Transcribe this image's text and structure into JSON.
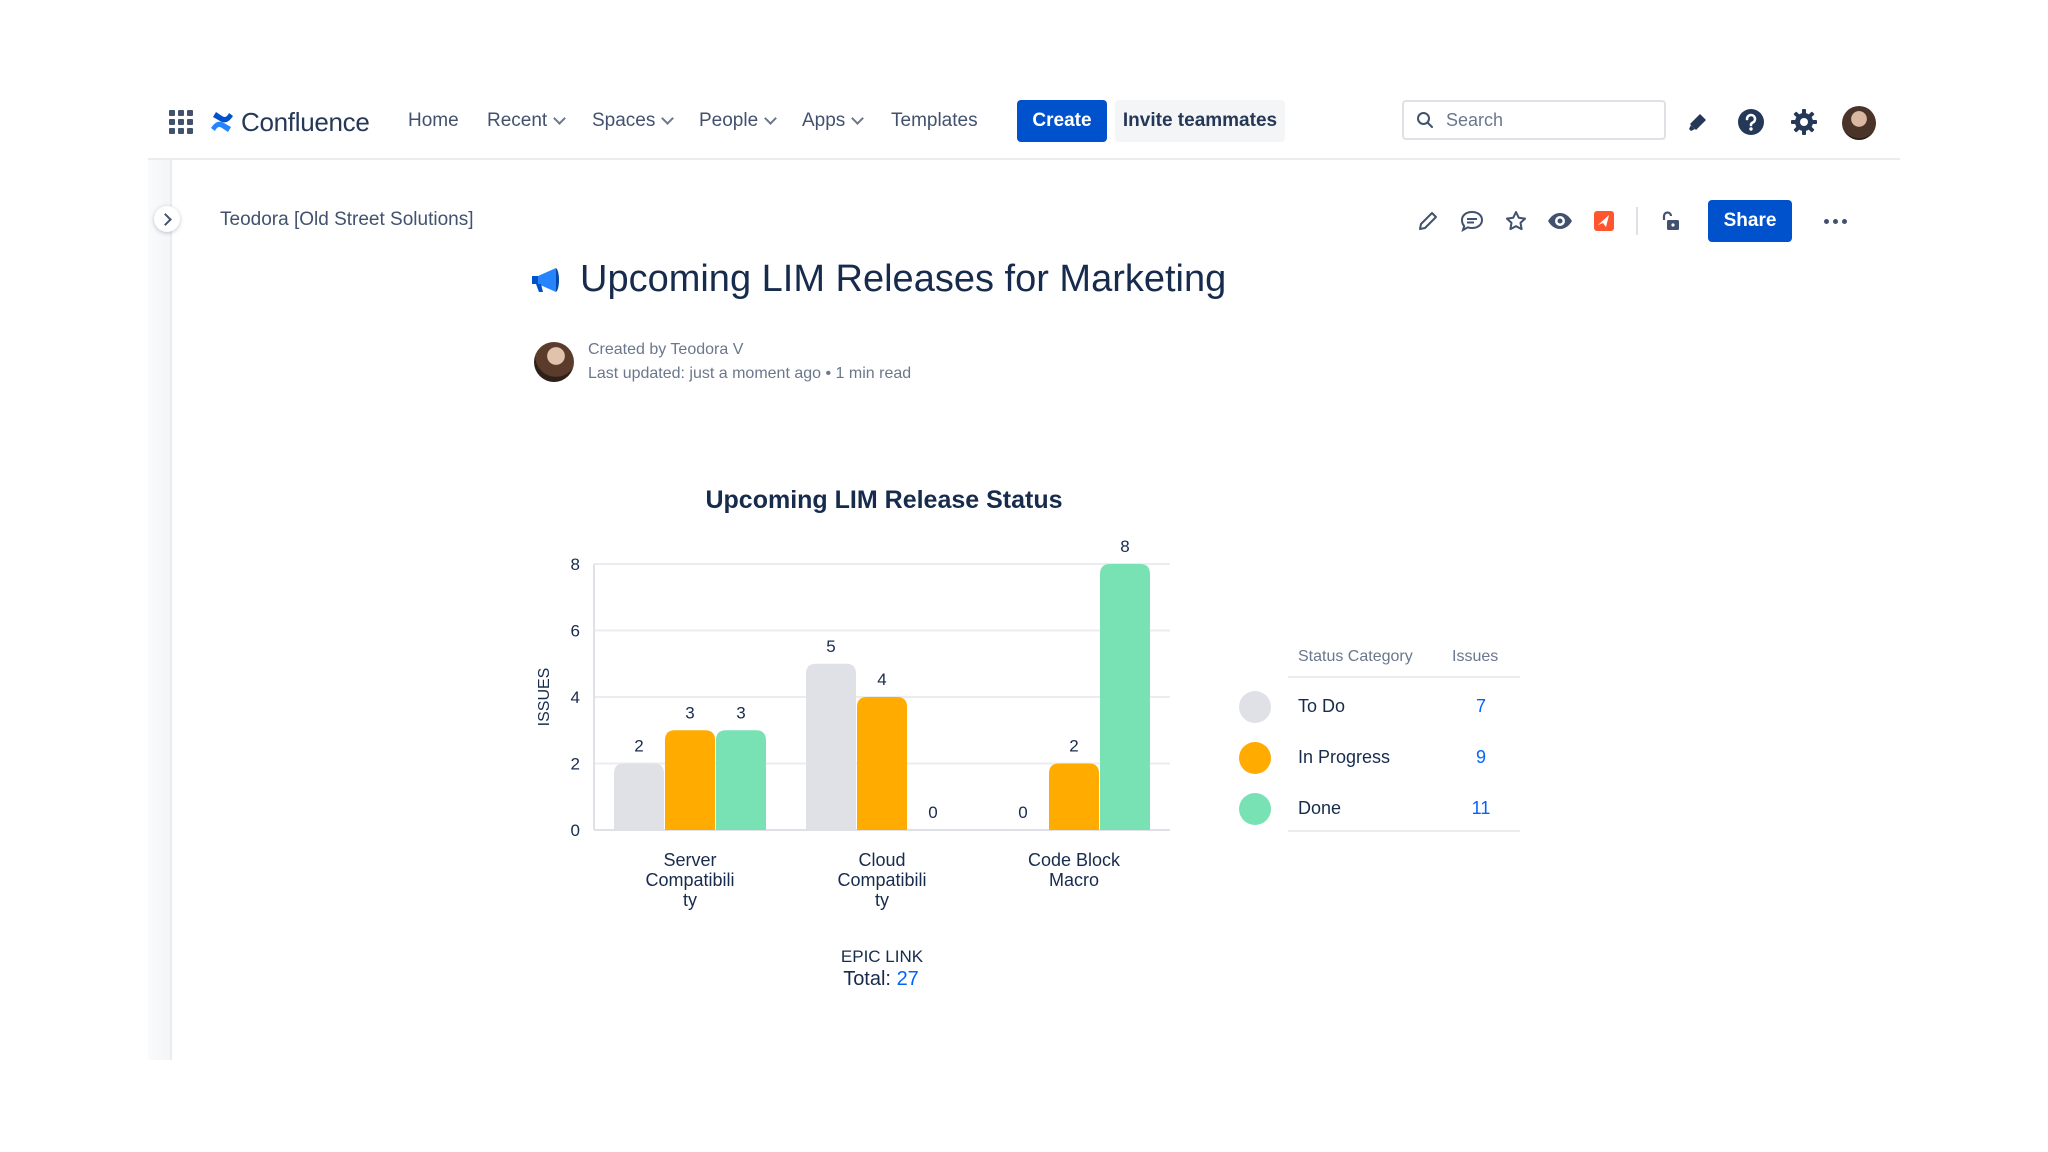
{
  "nav": {
    "logo_text": "Confluence",
    "items": [
      {
        "label": "Home",
        "dropdown": false
      },
      {
        "label": "Recent",
        "dropdown": true
      },
      {
        "label": "Spaces",
        "dropdown": true
      },
      {
        "label": "People",
        "dropdown": true
      },
      {
        "label": "Apps",
        "dropdown": true
      },
      {
        "label": "Templates",
        "dropdown": false
      }
    ],
    "create_label": "Create",
    "invite_label": "Invite teammates",
    "search_placeholder": "Search",
    "icons": [
      "notifications-icon",
      "help-icon",
      "settings-icon",
      "profile-avatar"
    ]
  },
  "page": {
    "breadcrumb": "Teodora [Old Street Solutions]",
    "share_label": "Share",
    "title": "Upcoming LIM Releases for Marketing",
    "created_by": "Created by Teodora V",
    "last_updated": "Last updated: just a moment ago",
    "read_time": "1 min read",
    "actions": [
      "edit-icon",
      "comment-icon",
      "star-icon",
      "watch-icon",
      "app-icon",
      "restrictions-icon"
    ]
  },
  "colors": {
    "primary": "#0052CC",
    "link": "#0065FF",
    "todo": "#DFE1E6",
    "in_progress": "#FFAB00",
    "done": "#79E2B4"
  },
  "chart_data": {
    "type": "bar",
    "title": "Upcoming LIM Release Status",
    "xlabel": "EPIC LINK",
    "ylabel": "ISSUES",
    "ylim": [
      0,
      8
    ],
    "yticks": [
      0,
      2,
      4,
      6,
      8
    ],
    "categories": [
      "Server Compatibility",
      "Cloud Compatibility",
      "Code Block Macro"
    ],
    "category_label_lines": [
      [
        "Server",
        "Compatibili",
        "ty"
      ],
      [
        "Cloud",
        "Compatibili",
        "ty"
      ],
      [
        "Code Block",
        "Macro"
      ]
    ],
    "series": [
      {
        "name": "To Do",
        "values": [
          2,
          5,
          0
        ],
        "color": "#DFE1E6"
      },
      {
        "name": "In Progress",
        "values": [
          3,
          4,
          2
        ],
        "color": "#FFAB00"
      },
      {
        "name": "Done",
        "values": [
          3,
          0,
          8
        ],
        "color": "#79E2B4"
      }
    ],
    "grid": true,
    "legend": "right"
  },
  "legend_table": {
    "header_category": "Status Category",
    "header_issues": "Issues",
    "rows": [
      {
        "label": "To Do",
        "count": "7",
        "color": "#DFE1E6"
      },
      {
        "label": "In Progress",
        "count": "9",
        "color": "#FFAB00"
      },
      {
        "label": "Done",
        "count": "11",
        "color": "#79E2B4"
      }
    ]
  },
  "total": {
    "label": "Total:",
    "value": "27"
  }
}
